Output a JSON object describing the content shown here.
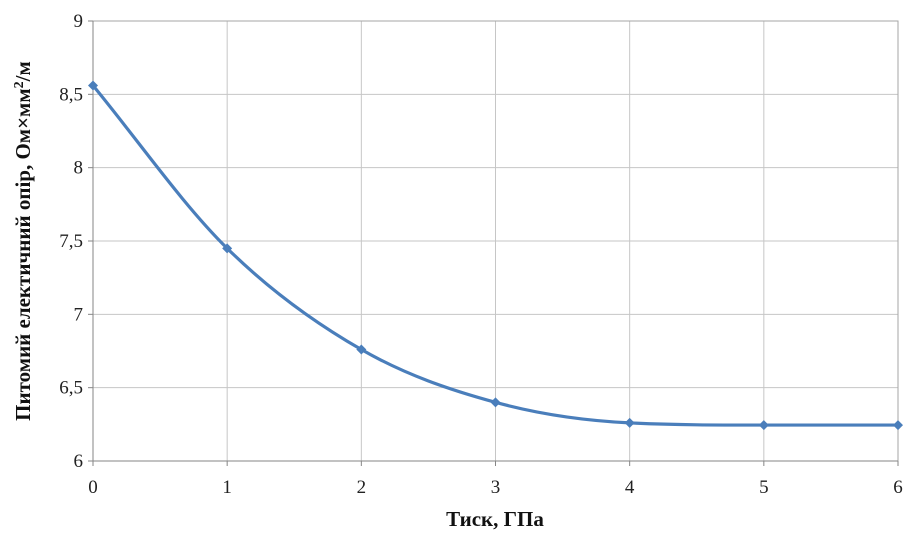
{
  "chart_data": {
    "type": "line",
    "title": "",
    "xlabel": "Тиск, ГПа",
    "ylabel_parts": {
      "main": "Питомий електичний опір, Ом×мм",
      "sup": "2",
      "tail": "/м"
    },
    "xlim": [
      0,
      6
    ],
    "ylim": [
      6,
      9
    ],
    "x_ticks": [
      0,
      1,
      2,
      3,
      4,
      5,
      6
    ],
    "x_tick_labels": [
      "0",
      "1",
      "2",
      "3",
      "4",
      "5",
      "6"
    ],
    "y_ticks": [
      6,
      6.5,
      7,
      7.5,
      8,
      8.5,
      9
    ],
    "y_tick_labels": [
      "6",
      "6,5",
      "7",
      "7,5",
      "8",
      "8,5",
      "9"
    ],
    "grid": true,
    "legend": "none",
    "series": [
      {
        "color": "#4a7ebb",
        "x": [
          0,
          1,
          2,
          3,
          4,
          5,
          6
        ],
        "y": [
          8.56,
          7.45,
          6.76,
          6.4,
          6.26,
          6.245,
          6.245
        ]
      }
    ]
  }
}
